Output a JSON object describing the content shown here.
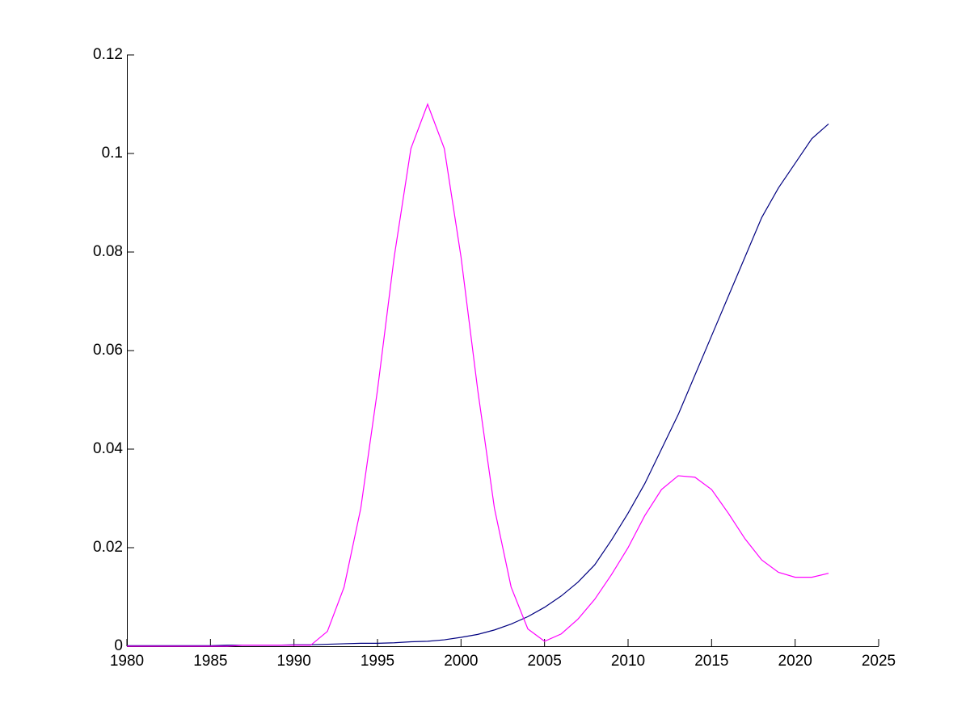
{
  "chart_data": {
    "type": "line",
    "x": [
      1980,
      1981,
      1982,
      1983,
      1984,
      1985,
      1986,
      1987,
      1988,
      1989,
      1990,
      1991,
      1992,
      1993,
      1994,
      1995,
      1996,
      1997,
      1998,
      1999,
      2000,
      2001,
      2002,
      2003,
      2004,
      2005,
      2006,
      2007,
      2008,
      2009,
      2010,
      2011,
      2012,
      2013,
      2014,
      2015,
      2016,
      2017,
      2018,
      2019,
      2020,
      2021,
      2022
    ],
    "series": [
      {
        "color": "#000080",
        "values": [
          0.0001,
          0.0001,
          0.0001,
          0.0001,
          0.0001,
          0.0001,
          0.0002,
          0.0002,
          0.0002,
          0.0002,
          0.0003,
          0.0003,
          0.0004,
          0.0005,
          0.0006,
          0.0006,
          0.0007,
          0.0009,
          0.001,
          0.0013,
          0.0018,
          0.0024,
          0.0033,
          0.0045,
          0.006,
          0.0079,
          0.0102,
          0.013,
          0.0165,
          0.0215,
          0.027,
          0.033,
          0.04,
          0.047,
          0.055,
          0.063,
          0.071,
          0.079,
          0.087,
          0.093,
          0.098,
          0.103,
          0.106
        ]
      },
      {
        "color": "#ff00ff",
        "values": [
          0,
          0,
          0,
          0,
          0,
          0,
          0,
          0.0002,
          0.0002,
          0.0002,
          0.0002,
          0.0002,
          0.003,
          0.012,
          0.028,
          0.052,
          0.079,
          0.101,
          0.11,
          0.101,
          0.079,
          0.052,
          0.028,
          0.012,
          0.0035,
          0.001,
          0.0025,
          0.0055,
          0.0095,
          0.0145,
          0.02,
          0.0265,
          0.0318,
          0.0346,
          0.0343,
          0.0318,
          0.027,
          0.0218,
          0.0175,
          0.015,
          0.014,
          0.014,
          0.0148
        ]
      }
    ],
    "xlim": [
      1980,
      2025
    ],
    "xticks": [
      1980,
      1985,
      1990,
      1995,
      2000,
      2005,
      2010,
      2015,
      2020,
      2025
    ],
    "ylim": [
      0,
      0.12
    ],
    "yticks": [
      0,
      0.02,
      0.04,
      0.06,
      0.08,
      0.1,
      0.12
    ]
  }
}
